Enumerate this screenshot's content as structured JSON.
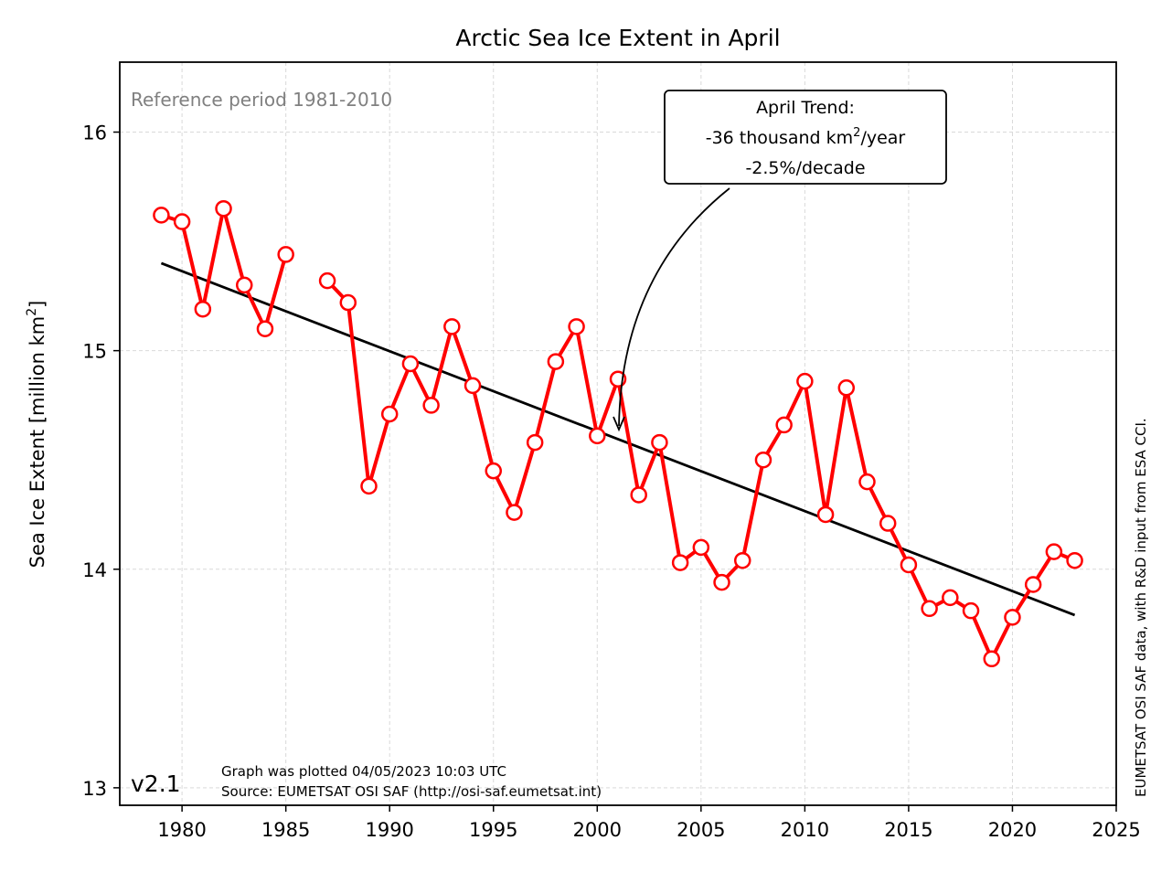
{
  "chart_data": {
    "type": "line",
    "title": "Arctic Sea Ice Extent in April",
    "ylabel_main": "Sea Ice Extent [million km",
    "ylabel_sup": "2",
    "ylabel_end": "]",
    "xlabel": "",
    "xlim": [
      1977,
      2025
    ],
    "ylim": [
      12.92,
      16.32
    ],
    "xticks": [
      1980,
      1985,
      1990,
      1995,
      2000,
      2005,
      2010,
      2015,
      2020,
      2025
    ],
    "yticks": [
      13,
      14,
      15,
      16
    ],
    "grid": true,
    "colors": {
      "series": "#ff0000",
      "trend": "#000000",
      "reference": "#808080",
      "grid": "#d9d9d9"
    },
    "series": [
      {
        "x": [
          1979,
          1980,
          1981,
          1982,
          1983,
          1984,
          1985,
          null,
          1987,
          1988,
          1989,
          1990,
          1991,
          1992,
          1993,
          1994,
          1995,
          1996,
          1997,
          1998,
          1999,
          2000,
          2001,
          2002,
          2003,
          2004,
          2005,
          2006,
          2007,
          2008,
          2009,
          2010,
          2011,
          2012,
          2013,
          2014,
          2015,
          2016,
          2017,
          2018,
          2019,
          2020,
          2021,
          2022,
          2023
        ],
        "values": [
          15.62,
          15.59,
          15.19,
          15.65,
          15.3,
          15.1,
          15.44,
          null,
          15.32,
          15.22,
          14.38,
          14.71,
          14.94,
          14.75,
          15.11,
          14.84,
          14.45,
          14.26,
          14.58,
          14.95,
          15.11,
          14.61,
          14.87,
          14.34,
          14.58,
          14.03,
          14.1,
          13.94,
          14.04,
          14.5,
          14.66,
          14.86,
          14.25,
          14.83,
          14.4,
          14.21,
          14.02,
          13.82,
          13.87,
          13.81,
          13.59,
          13.78,
          13.93,
          14.08,
          14.04
        ]
      }
    ],
    "trend": {
      "x": [
        1979,
        2023
      ],
      "values": [
        15.4,
        13.79
      ]
    },
    "annotations": {
      "reference": "Reference period 1981-2010",
      "trend_box_line1": "April Trend:",
      "trend_box_line2_main": "-36 thousand km",
      "trend_box_line2_sup": "2",
      "trend_box_line2_end": "/year",
      "trend_box_line3": "-2.5%/decade",
      "arrow_target": {
        "x": 2001,
        "y": 14.62
      },
      "version": "v2.1",
      "plotted": "Graph was plotted 04/05/2023 10:03 UTC",
      "source": "Source: EUMETSAT OSI SAF (http://osi-saf.eumetsat.int)",
      "credit": "EUMETSAT OSI SAF data, with R&D input from ESA CCI."
    }
  }
}
